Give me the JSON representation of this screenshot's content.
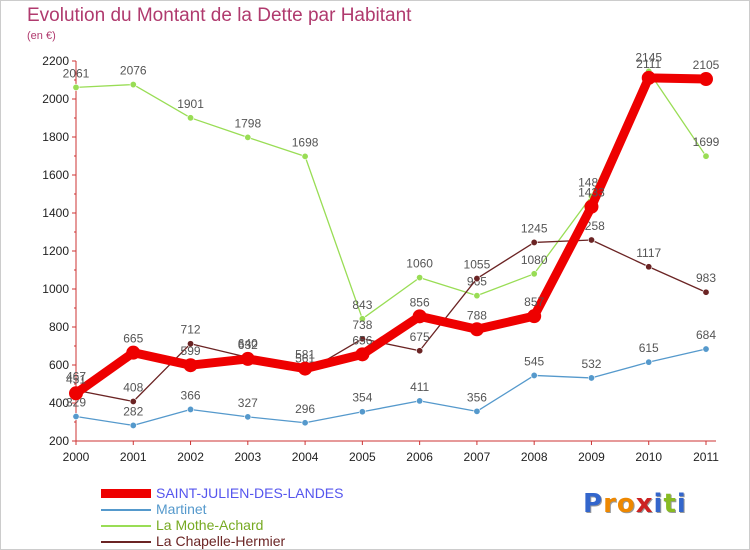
{
  "chart_data": {
    "type": "line",
    "title": "Evolution du Montant de la Dette par Habitant",
    "unit": "(en €)",
    "x": [
      "2000",
      "2001",
      "2002",
      "2003",
      "2004",
      "2005",
      "2006",
      "2007",
      "2008",
      "2009",
      "2010",
      "2011"
    ],
    "ylim": [
      200,
      2200
    ],
    "yticks": [
      200,
      400,
      600,
      800,
      1000,
      1200,
      1400,
      1600,
      1800,
      2000,
      2200
    ],
    "grid": false,
    "legend_position": "bottom-left",
    "series": [
      {
        "name": "La Mothe-Achard",
        "color": "#99dd55",
        "values": [
          2061,
          2076,
          1901,
          1798,
          1698,
          843,
          1060,
          965,
          1080,
          1488,
          2145,
          1699
        ]
      },
      {
        "name": "La Chapelle-Hermier",
        "color": "#6b2424",
        "values": [
          467,
          408,
          712,
          640,
          561,
          738,
          675,
          1055,
          1245,
          1258,
          1117,
          983
        ]
      },
      {
        "name": "Martinet",
        "color": "#5599cc",
        "values": [
          329,
          282,
          366,
          327,
          296,
          354,
          411,
          356,
          545,
          532,
          615,
          684
        ]
      },
      {
        "name": "SAINT-JULIEN-DES-LANDES",
        "color": "#ee0000",
        "values": [
          451,
          665,
          599,
          632,
          581,
          656,
          856,
          788,
          857,
          1433,
          2111,
          2105
        ]
      }
    ],
    "legend_order": [
      "SAINT-JULIEN-DES-LANDES",
      "Martinet",
      "La Mothe-Achard",
      "La Chapelle-Hermier"
    ],
    "legend_text_colors": {
      "SAINT-JULIEN-DES-LANDES": "#5555ee",
      "Martinet": "#5599cc",
      "La Mothe-Achard": "#77aa22",
      "La Chapelle-Hermier": "#6b2424"
    }
  },
  "logo": {
    "letters": [
      "P",
      "r",
      "o",
      "x",
      "i",
      "t",
      "i"
    ],
    "colors": [
      "#3366cc",
      "#ee8800",
      "#ee8800",
      "#cc2222",
      "#3366cc",
      "#88bb22",
      "#3366cc"
    ]
  }
}
